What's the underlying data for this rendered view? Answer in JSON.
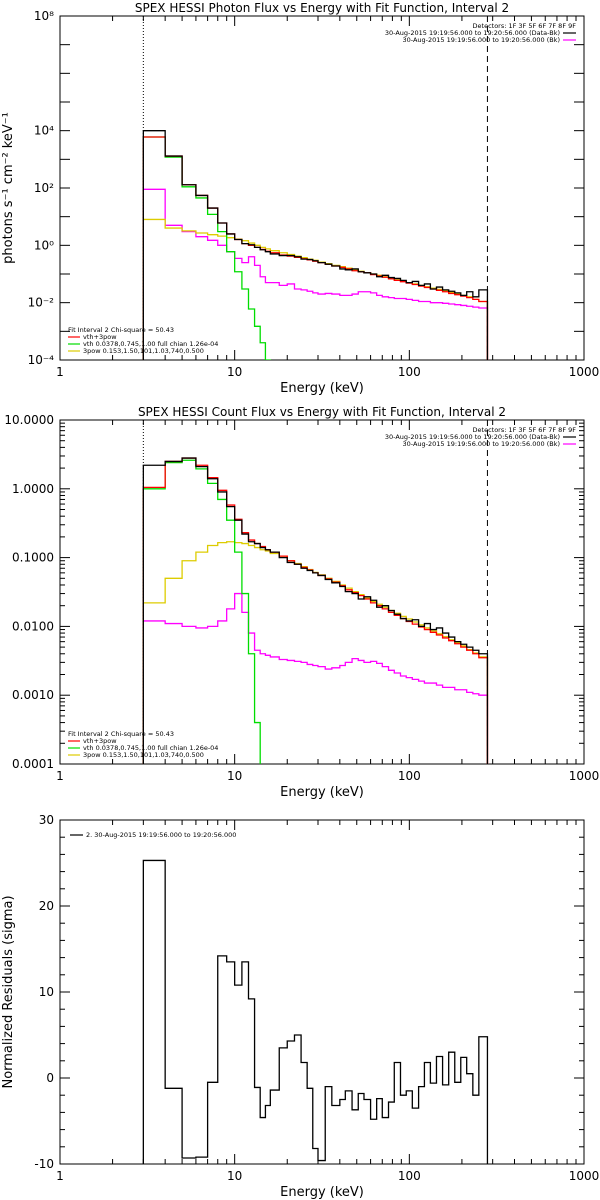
{
  "colors": {
    "observed": "#000000",
    "total_fit": "#ff0000",
    "vth": "#00dd00",
    "3pow": "#ddcc00",
    "background": "#ff00ff",
    "ref_lines": "#000000"
  },
  "chart_data": [
    {
      "type": "line",
      "step": true,
      "scale": {
        "x": "log",
        "y": "log"
      },
      "title": "SPEX HESSI Photon Flux vs Energy with Fit Function, Interval 2",
      "xlabel": "Energy (keV)",
      "ylabel": "photons s⁻¹ cm⁻² keV⁻¹",
      "xlim": [
        1,
        1000
      ],
      "ylim": [
        0.0001,
        100000000
      ],
      "x_ticks": [
        1,
        10,
        100,
        1000
      ],
      "x_tick_labels": [
        "1",
        "10",
        "100",
        "1000"
      ],
      "y_ticks": [
        0.0001,
        0.01,
        1,
        100,
        10000,
        100000000
      ],
      "y_tick_labels": [
        "10⁻⁴",
        "10⁻²",
        "10⁰",
        "10²",
        "10⁴",
        "10⁸"
      ],
      "bin_edges": [
        3,
        4,
        5,
        6,
        7,
        8,
        9,
        10,
        11,
        12,
        13,
        14,
        15,
        16,
        18,
        20,
        22,
        24,
        26,
        28,
        30,
        33,
        36,
        40,
        43,
        47,
        51,
        55,
        60,
        65,
        70,
        76,
        82,
        89,
        96,
        104,
        113,
        122,
        132,
        143,
        155,
        168,
        182,
        197,
        213,
        231,
        250,
        280
      ],
      "vlines": [
        {
          "x": 3,
          "style": "dotted"
        },
        {
          "x": 280,
          "style": "dashed"
        }
      ],
      "legend_top": {
        "position": "top-right",
        "lines": [
          {
            "text": "Detectors: 1F 3F 5F 6F 7F 8F 9F",
            "color": ""
          },
          {
            "text": "30-Aug-2015 19:19:56.000 to 19:20:56.000 (Data-Bk)",
            "color": "observed"
          },
          {
            "text": "30-Aug-2015 19:19:56.000 to 19:20:56.000 (Bk)",
            "color": "background"
          }
        ]
      },
      "legend_bottom": {
        "position": "bottom-left",
        "header": "Fit Interval  2    Chi-square = 50.43",
        "entries": [
          {
            "text": "vth+3pow",
            "color": "total_fit"
          },
          {
            "text": "vth 0.0378,0.745,1.00   full chian 1.26e-04",
            "color": "vth"
          },
          {
            "text": "3pow 0.153,1.50,101,1.03,740,0.500",
            "color": "3pow"
          }
        ]
      },
      "series": [
        {
          "key": "observed",
          "values": [
            10000,
            1300,
            130,
            55,
            20,
            6,
            2.5,
            1.6,
            1.15,
            1.05,
            0.85,
            0.7,
            0.6,
            0.5,
            0.44,
            0.44,
            0.4,
            0.33,
            0.32,
            0.29,
            0.25,
            0.22,
            0.19,
            0.15,
            0.14,
            0.15,
            0.12,
            0.11,
            0.1,
            0.08,
            0.09,
            0.075,
            0.07,
            0.06,
            0.05,
            0.055,
            0.04,
            0.045,
            0.03,
            0.035,
            0.028,
            0.025,
            0.022,
            0.018,
            0.024,
            0.016,
            0.028
          ]
        },
        {
          "key": "total_fit",
          "values": [
            6000,
            1300,
            130,
            55,
            20,
            6,
            2.5,
            1.6,
            1.15,
            1.0,
            0.85,
            0.72,
            0.62,
            0.55,
            0.46,
            0.42,
            0.38,
            0.34,
            0.31,
            0.28,
            0.25,
            0.22,
            0.19,
            0.17,
            0.15,
            0.13,
            0.12,
            0.11,
            0.095,
            0.085,
            0.077,
            0.068,
            0.06,
            0.054,
            0.048,
            0.043,
            0.038,
            0.034,
            0.03,
            0.027,
            0.024,
            0.021,
            0.019,
            0.017,
            0.015,
            0.013,
            0.011
          ]
        },
        {
          "key": "vth",
          "values": [
            6000,
            1200,
            110,
            45,
            12,
            3,
            0.6,
            0.12,
            0.03,
            0.006,
            0.0015,
            0.0004,
            0.0001,
            2e-05,
            1e-06,
            0,
            0,
            0,
            0,
            0,
            0,
            0,
            0,
            0,
            0,
            0,
            0,
            0,
            0,
            0,
            0,
            0,
            0,
            0,
            0,
            0,
            0,
            0,
            0,
            0,
            0,
            0,
            0,
            0,
            0,
            0,
            0
          ]
        },
        {
          "key": "3pow",
          "values": [
            8,
            4,
            3.2,
            2.7,
            2.35,
            2.1,
            1.85,
            1.65,
            1.45,
            1.2,
            1.0,
            0.85,
            0.75,
            0.65,
            0.55,
            0.48,
            0.42,
            0.37,
            0.33,
            0.3,
            0.26,
            0.23,
            0.2,
            0.18,
            0.16,
            0.14,
            0.125,
            0.11,
            0.1,
            0.09,
            0.08,
            0.07,
            0.063,
            0.056,
            0.05,
            0.045,
            0.04,
            0.036,
            0.032,
            0.029,
            0.026,
            0.023,
            0.02,
            0.018,
            0.016,
            0.013,
            0.011
          ]
        },
        {
          "key": "background",
          "values": [
            90,
            5,
            3,
            2,
            1.5,
            1.0,
            0.6,
            0.35,
            0.25,
            0.4,
            0.2,
            0.08,
            0.05,
            0.05,
            0.04,
            0.045,
            0.03,
            0.028,
            0.025,
            0.022,
            0.02,
            0.021,
            0.02,
            0.018,
            0.018,
            0.02,
            0.024,
            0.024,
            0.022,
            0.018,
            0.016,
            0.015,
            0.014,
            0.014,
            0.013,
            0.012,
            0.011,
            0.011,
            0.01,
            0.01,
            0.0095,
            0.009,
            0.0085,
            0.008,
            0.0075,
            0.007,
            0.0065
          ]
        }
      ]
    },
    {
      "type": "line",
      "step": true,
      "scale": {
        "x": "log",
        "y": "log"
      },
      "title": "SPEX HESSI Count Flux vs Energy with Fit Function, Interval 2",
      "xlabel": "Energy (keV)",
      "ylabel": "",
      "xlim": [
        1,
        1000
      ],
      "ylim": [
        0.0001,
        10
      ],
      "x_ticks": [
        1,
        10,
        100,
        1000
      ],
      "x_tick_labels": [
        "1",
        "10",
        "100",
        "1000"
      ],
      "y_ticks": [
        0.0001,
        0.001,
        0.01,
        0.1,
        1,
        10
      ],
      "y_tick_labels": [
        "0.0001",
        "0.0010",
        "0.0100",
        "0.1000",
        "1.0000",
        "10.0000"
      ],
      "bin_edges": [
        3,
        4,
        5,
        6,
        7,
        8,
        9,
        10,
        11,
        12,
        13,
        14,
        15,
        16,
        18,
        20,
        22,
        24,
        26,
        28,
        30,
        33,
        36,
        40,
        43,
        47,
        51,
        55,
        60,
        65,
        70,
        76,
        82,
        89,
        96,
        104,
        113,
        122,
        132,
        143,
        155,
        168,
        182,
        197,
        213,
        231,
        250,
        280
      ],
      "vlines": [
        {
          "x": 3,
          "style": "dotted"
        },
        {
          "x": 280,
          "style": "dashed"
        }
      ],
      "legend_top": {
        "position": "top-right",
        "lines": [
          {
            "text": "Detectors: 1F 3F 5F 6F 7F 8F 9F",
            "color": ""
          },
          {
            "text": "30-Aug-2015 19:19:56.000 to 19:20:56.000 (Data-Bk)",
            "color": "observed"
          },
          {
            "text": "30-Aug-2015 19:19:56.000 to 19:20:56.000 (Bk)",
            "color": "background"
          }
        ]
      },
      "legend_bottom": {
        "position": "bottom-left",
        "header": "Fit Interval  2    Chi-square = 50.43",
        "entries": [
          {
            "text": "vth+3pow",
            "color": "total_fit"
          },
          {
            "text": "vth 0.0378,0.745,1.00   full chian 1.26e-04",
            "color": "vth"
          },
          {
            "text": "3pow 0.153,1.50,101,1.03,740,0.500",
            "color": "3pow"
          }
        ]
      },
      "series": [
        {
          "key": "observed",
          "values": [
            2.2,
            2.5,
            2.8,
            2.1,
            1.4,
            0.9,
            0.55,
            0.35,
            0.22,
            0.17,
            0.16,
            0.14,
            0.13,
            0.12,
            0.1,
            0.085,
            0.08,
            0.07,
            0.065,
            0.06,
            0.055,
            0.048,
            0.043,
            0.038,
            0.032,
            0.03,
            0.025,
            0.027,
            0.024,
            0.019,
            0.02,
            0.017,
            0.015,
            0.013,
            0.012,
            0.0125,
            0.01,
            0.011,
            0.009,
            0.0095,
            0.008,
            0.007,
            0.006,
            0.0055,
            0.005,
            0.0045,
            0.004
          ]
        },
        {
          "key": "total_fit",
          "values": [
            1.05,
            2.5,
            2.8,
            2.2,
            1.45,
            0.95,
            0.58,
            0.36,
            0.23,
            0.18,
            0.16,
            0.145,
            0.13,
            0.12,
            0.105,
            0.09,
            0.08,
            0.072,
            0.066,
            0.06,
            0.055,
            0.049,
            0.044,
            0.039,
            0.034,
            0.031,
            0.028,
            0.025,
            0.022,
            0.02,
            0.018,
            0.016,
            0.0145,
            0.013,
            0.0118,
            0.0108,
            0.0098,
            0.009,
            0.0082,
            0.0075,
            0.0068,
            0.0062,
            0.0056,
            0.005,
            0.0045,
            0.004,
            0.0035
          ]
        },
        {
          "key": "vth",
          "values": [
            1.0,
            2.4,
            2.6,
            1.95,
            1.2,
            0.7,
            0.35,
            0.12,
            0.03,
            0.004,
            0.0004,
            3e-05,
            0,
            0,
            0,
            0,
            0,
            0,
            0,
            0,
            0,
            0,
            0,
            0,
            0,
            0,
            0,
            0,
            0,
            0,
            0,
            0,
            0,
            0,
            0,
            0,
            0,
            0,
            0,
            0,
            0,
            0,
            0,
            0,
            0,
            0,
            0
          ]
        },
        {
          "key": "3pow",
          "values": [
            0.022,
            0.05,
            0.09,
            0.12,
            0.15,
            0.165,
            0.17,
            0.165,
            0.16,
            0.15,
            0.14,
            0.13,
            0.125,
            0.115,
            0.105,
            0.09,
            0.082,
            0.074,
            0.067,
            0.061,
            0.056,
            0.05,
            0.045,
            0.04,
            0.036,
            0.032,
            0.029,
            0.026,
            0.023,
            0.021,
            0.019,
            0.017,
            0.0155,
            0.014,
            0.0128,
            0.0116,
            0.0105,
            0.0095,
            0.0086,
            0.0078,
            0.0071,
            0.0064,
            0.0058,
            0.0052,
            0.0046,
            0.0041,
            0.0036
          ]
        },
        {
          "key": "background",
          "values": [
            0.012,
            0.011,
            0.01,
            0.0095,
            0.01,
            0.012,
            0.018,
            0.03,
            0.016,
            0.008,
            0.0045,
            0.004,
            0.0038,
            0.0036,
            0.0033,
            0.0032,
            0.0031,
            0.003,
            0.0028,
            0.0027,
            0.0026,
            0.0024,
            0.0025,
            0.0027,
            0.003,
            0.0034,
            0.0032,
            0.003,
            0.0031,
            0.0029,
            0.0026,
            0.0023,
            0.0021,
            0.0019,
            0.0018,
            0.0017,
            0.0016,
            0.0015,
            0.0015,
            0.0014,
            0.0013,
            0.0013,
            0.0012,
            0.0012,
            0.0011,
            0.00105,
            0.001
          ]
        }
      ]
    },
    {
      "type": "line",
      "step": true,
      "scale": {
        "x": "log",
        "y": "linear"
      },
      "title": "",
      "xlabel": "Energy (keV)",
      "ylabel": "Normalized Residuals (sigma)",
      "xlim": [
        1,
        1000
      ],
      "ylim": [
        -10,
        30
      ],
      "x_ticks": [
        1,
        10,
        100,
        1000
      ],
      "x_tick_labels": [
        "1",
        "10",
        "100",
        "1000"
      ],
      "y_ticks": [
        -10,
        0,
        10,
        20,
        30
      ],
      "y_tick_labels": [
        "-10",
        "0",
        "10",
        "20",
        "30"
      ],
      "bin_edges": [
        3,
        4,
        5,
        6,
        7,
        8,
        9,
        10,
        11,
        12,
        13,
        14,
        15,
        16,
        18,
        20,
        22,
        24,
        26,
        28,
        30,
        33,
        36,
        40,
        43,
        47,
        51,
        55,
        60,
        65,
        70,
        76,
        82,
        89,
        96,
        104,
        113,
        122,
        132,
        143,
        155,
        168,
        182,
        197,
        213,
        231,
        250,
        280
      ],
      "legend_top": {
        "position": "top-left",
        "lines": [
          {
            "text": "2. 30-Aug-2015 19:19:56.000 to 19:20:56.000",
            "color": "observed"
          }
        ]
      },
      "series": [
        {
          "key": "observed",
          "values": [
            25.3,
            -1.2,
            -9.3,
            -9.2,
            -0.5,
            14.2,
            13.5,
            10.8,
            13.5,
            9.2,
            -1.1,
            -4.6,
            -3.2,
            -1.4,
            3.5,
            4.3,
            5.0,
            1.8,
            -1.2,
            -8.2,
            -9.6,
            -1.0,
            -3.2,
            -2.5,
            -1.5,
            -3.7,
            -1.8,
            -2.5,
            -4.8,
            -2.4,
            -4.6,
            -2.8,
            1.8,
            -2.0,
            -1.5,
            -3.5,
            -1.0,
            1.8,
            -0.6,
            2.5,
            -0.8,
            3.0,
            -0.5,
            2.4,
            0.5,
            -2.0,
            4.8
          ]
        }
      ]
    }
  ]
}
